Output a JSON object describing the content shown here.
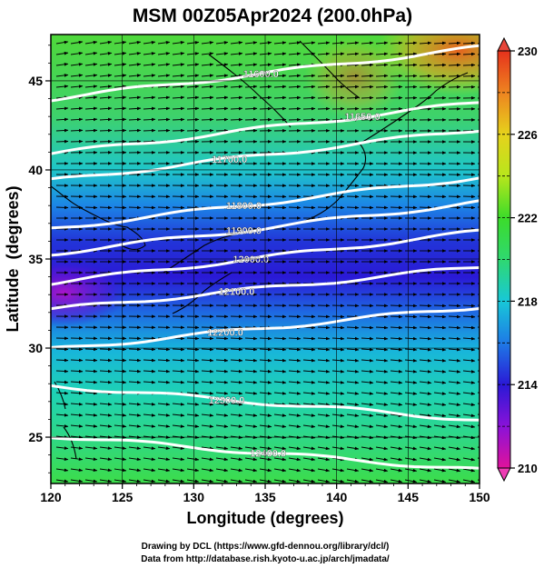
{
  "chart_data": {
    "type": "heatmap",
    "title": "MSM 00Z05Apr2024 (200.0hPa)",
    "xlabel": "Longitude (degrees)",
    "ylabel": "Latitude  (degrees)",
    "xlim": [
      120,
      150
    ],
    "ylim": [
      22.4,
      47.6
    ],
    "x_ticks": [
      120,
      125,
      130,
      135,
      140,
      145,
      150
    ],
    "y_ticks": [
      25,
      30,
      35,
      40,
      45
    ],
    "colorbar": {
      "label": "",
      "range": [
        210,
        230
      ],
      "ticks": [
        210,
        214,
        218,
        222,
        226,
        230
      ],
      "colors": [
        "#e0129b",
        "#8a12d8",
        "#2a19d6",
        "#1e7ae6",
        "#18c8d8",
        "#2fd870",
        "#3cdc2a",
        "#b8e61c",
        "#e6d21c",
        "#ee8420",
        "#e6321c"
      ]
    },
    "contour_labels": [
      {
        "text": "11600.0",
        "lon": 134.7,
        "lat": 45.4
      },
      {
        "text": "11650.0",
        "lon": 141.8,
        "lat": 43.0
      },
      {
        "text": "11700.0",
        "lon": 132.5,
        "lat": 40.6
      },
      {
        "text": "11800.0",
        "lon": 133.5,
        "lat": 38.0
      },
      {
        "text": "11900.0",
        "lon": 133.5,
        "lat": 36.6
      },
      {
        "text": "12000.0",
        "lon": 134.0,
        "lat": 35.0
      },
      {
        "text": "12100.0",
        "lon": 133.0,
        "lat": 33.2
      },
      {
        "text": "12200.0",
        "lon": 132.2,
        "lat": 30.9
      },
      {
        "text": "12300.0",
        "lon": 132.3,
        "lat": 27.1
      },
      {
        "text": "12400.0",
        "lon": 135.2,
        "lat": 24.1
      }
    ],
    "grid": true
  },
  "credits": {
    "line1": "Drawing by DCL (https://www.gfd-dennou.org/library/dcl/)",
    "line2": "Data from http://database.rish.kyoto-u.ac.jp/arch/jmadata/"
  }
}
